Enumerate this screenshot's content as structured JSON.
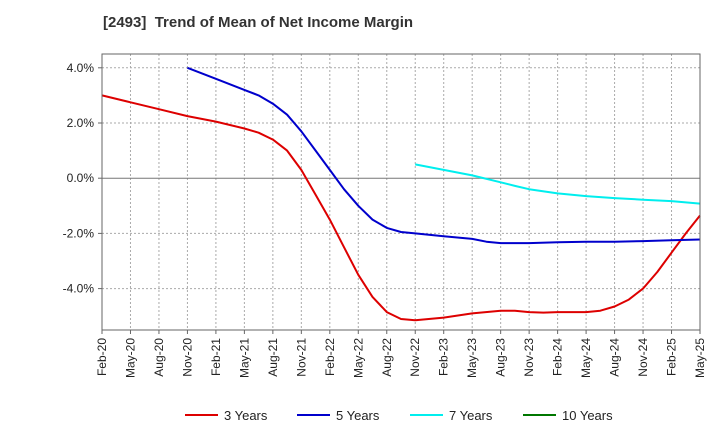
{
  "chart_data": {
    "type": "line",
    "title": "[2493]  Trend of Mean of Net Income Margin",
    "xlabel": "",
    "ylabel": "",
    "x_ticks": [
      "Feb-20",
      "May-20",
      "Aug-20",
      "Nov-20",
      "Feb-21",
      "May-21",
      "Aug-21",
      "Nov-21",
      "Feb-22",
      "May-22",
      "Aug-22",
      "Nov-22",
      "Feb-23",
      "May-23",
      "Aug-23",
      "Nov-23",
      "Feb-24",
      "May-24",
      "Aug-24",
      "Nov-24",
      "Feb-25",
      "May-25"
    ],
    "y_ticks": [
      4.0,
      2.0,
      0.0,
      -2.0,
      -4.0
    ],
    "y_tick_labels": [
      "4.0%",
      "2.0%",
      "0.0%",
      "-2.0%",
      "-4.0%"
    ],
    "ylim": [
      -5.5,
      4.5
    ],
    "grid": true,
    "legend_position": "bottom",
    "series": [
      {
        "name": "3 Years",
        "color": "#dd0000",
        "points": [
          [
            0,
            3.0
          ],
          [
            1,
            2.75
          ],
          [
            2,
            2.5
          ],
          [
            3,
            2.25
          ],
          [
            4,
            2.05
          ],
          [
            5,
            1.8
          ],
          [
            5.5,
            1.65
          ],
          [
            6,
            1.4
          ],
          [
            6.5,
            1.0
          ],
          [
            7,
            0.3
          ],
          [
            7.5,
            -0.6
          ],
          [
            8,
            -1.5
          ],
          [
            8.5,
            -2.5
          ],
          [
            9,
            -3.5
          ],
          [
            9.5,
            -4.3
          ],
          [
            10,
            -4.85
          ],
          [
            10.5,
            -5.1
          ],
          [
            11,
            -5.15
          ],
          [
            12,
            -5.05
          ],
          [
            13,
            -4.9
          ],
          [
            14,
            -4.8
          ],
          [
            14.5,
            -4.8
          ],
          [
            15,
            -4.85
          ],
          [
            15.5,
            -4.87
          ],
          [
            16,
            -4.85
          ],
          [
            17,
            -4.85
          ],
          [
            17.5,
            -4.8
          ],
          [
            18,
            -4.65
          ],
          [
            18.5,
            -4.4
          ],
          [
            19,
            -4.0
          ],
          [
            19.5,
            -3.4
          ],
          [
            20,
            -2.7
          ],
          [
            20.5,
            -2.0
          ],
          [
            21,
            -1.35
          ]
        ]
      },
      {
        "name": "5 Years",
        "color": "#0000cc",
        "points": [
          [
            3,
            4.0
          ],
          [
            4,
            3.6
          ],
          [
            5,
            3.2
          ],
          [
            5.5,
            3.0
          ],
          [
            6,
            2.7
          ],
          [
            6.5,
            2.3
          ],
          [
            7,
            1.7
          ],
          [
            7.5,
            1.0
          ],
          [
            8,
            0.3
          ],
          [
            8.5,
            -0.4
          ],
          [
            9,
            -1.0
          ],
          [
            9.5,
            -1.5
          ],
          [
            10,
            -1.8
          ],
          [
            10.5,
            -1.95
          ],
          [
            11,
            -2.0
          ],
          [
            12,
            -2.1
          ],
          [
            13,
            -2.2
          ],
          [
            13.5,
            -2.3
          ],
          [
            14,
            -2.35
          ],
          [
            15,
            -2.35
          ],
          [
            16,
            -2.32
          ],
          [
            17,
            -2.3
          ],
          [
            18,
            -2.3
          ],
          [
            19,
            -2.28
          ],
          [
            20,
            -2.25
          ],
          [
            21,
            -2.22
          ]
        ]
      },
      {
        "name": "7 Years",
        "color": "#00eeee",
        "points": [
          [
            11,
            0.5
          ],
          [
            12,
            0.3
          ],
          [
            13,
            0.1
          ],
          [
            14,
            -0.15
          ],
          [
            14.5,
            -0.28
          ],
          [
            15,
            -0.4
          ],
          [
            16,
            -0.55
          ],
          [
            17,
            -0.65
          ],
          [
            18,
            -0.72
          ],
          [
            19,
            -0.78
          ],
          [
            20,
            -0.83
          ],
          [
            21,
            -0.92
          ]
        ]
      },
      {
        "name": "10 Years",
        "color": "#007700",
        "points": []
      }
    ]
  }
}
